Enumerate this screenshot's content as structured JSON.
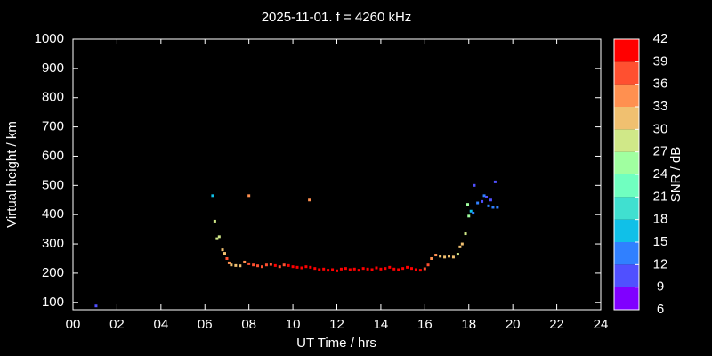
{
  "chart_data": {
    "type": "scatter",
    "title": "2025-11-01. f = 4260 kHz",
    "xlabel": "UT Time / hrs",
    "ylabel": "Virtual height / km",
    "x": [
      1.05,
      6.35,
      6.45,
      6.55,
      6.65,
      6.8,
      6.9,
      7.0,
      7.1,
      7.2,
      7.4,
      7.6,
      7.8,
      8.0,
      8.0,
      8.2,
      8.4,
      8.6,
      8.8,
      9.0,
      9.2,
      9.4,
      9.6,
      9.8,
      10.0,
      10.2,
      10.4,
      10.6,
      10.75,
      10.8,
      11.0,
      11.2,
      11.4,
      11.6,
      11.8,
      12.0,
      12.2,
      12.4,
      12.6,
      12.8,
      13.0,
      13.2,
      13.4,
      13.6,
      13.8,
      14.0,
      14.2,
      14.4,
      14.6,
      14.8,
      15.0,
      15.2,
      15.4,
      15.6,
      15.8,
      16.0,
      16.15,
      16.3,
      16.5,
      16.7,
      16.9,
      17.1,
      17.3,
      17.5,
      17.6,
      17.7,
      17.85,
      17.95,
      18.0,
      18.1,
      18.2,
      18.25,
      18.4,
      18.6,
      18.7,
      18.8,
      18.9,
      19.0,
      19.1,
      19.2,
      19.3
    ],
    "values": [
      88,
      465,
      378,
      318,
      325,
      280,
      268,
      250,
      235,
      228,
      226,
      225,
      238,
      232,
      465,
      228,
      225,
      222,
      228,
      230,
      226,
      222,
      228,
      226,
      222,
      220,
      218,
      222,
      450,
      220,
      216,
      212,
      214,
      210,
      212,
      208,
      214,
      216,
      212,
      214,
      210,
      216,
      214,
      212,
      218,
      214,
      216,
      220,
      214,
      212,
      216,
      220,
      216,
      212,
      210,
      215,
      228,
      250,
      262,
      258,
      255,
      258,
      255,
      265,
      290,
      300,
      335,
      435,
      395,
      412,
      405,
      500,
      440,
      445,
      465,
      460,
      430,
      450,
      425,
      512,
      425
    ],
    "snr": [
      10,
      17,
      28,
      28,
      27,
      30,
      32,
      36,
      33,
      31,
      30,
      31,
      35,
      38,
      35,
      38,
      37,
      36,
      37,
      38,
      39,
      37,
      38,
      39,
      40,
      41,
      40,
      39,
      34,
      40,
      40,
      41,
      39,
      40,
      41,
      40,
      41,
      40,
      41,
      42,
      41,
      40,
      41,
      42,
      40,
      41,
      42,
      41,
      40,
      41,
      42,
      41,
      40,
      39,
      40,
      38,
      36,
      34,
      33,
      32,
      31,
      32,
      31,
      27,
      32,
      31,
      28,
      25,
      24,
      15,
      12,
      11,
      12,
      11,
      12,
      11,
      12,
      11,
      12,
      11,
      12
    ],
    "xlim": [
      0,
      24
    ],
    "xticks": [
      {
        "value": 0,
        "label": "00"
      },
      {
        "value": 2,
        "label": "02"
      },
      {
        "value": 4,
        "label": "04"
      },
      {
        "value": 6,
        "label": "06"
      },
      {
        "value": 8,
        "label": "08"
      },
      10,
      12,
      14,
      16,
      18,
      20,
      22,
      24
    ],
    "ylim": [
      75,
      1000
    ],
    "yticks": [
      100,
      200,
      300,
      400,
      500,
      600,
      700,
      800,
      900,
      1000
    ],
    "colorbar": {
      "label": "SNR / dB",
      "ticks": [
        6,
        9,
        12,
        15,
        18,
        21,
        24,
        27,
        30,
        33,
        36,
        39,
        42
      ],
      "colors": [
        "#8000ff",
        "#5050ff",
        "#3080ff",
        "#10c0e8",
        "#40e0d0",
        "#70ffc0",
        "#a0ffa0",
        "#d0e888",
        "#f0c070",
        "#ff9050",
        "#ff5030",
        "#ff0000"
      ]
    }
  }
}
